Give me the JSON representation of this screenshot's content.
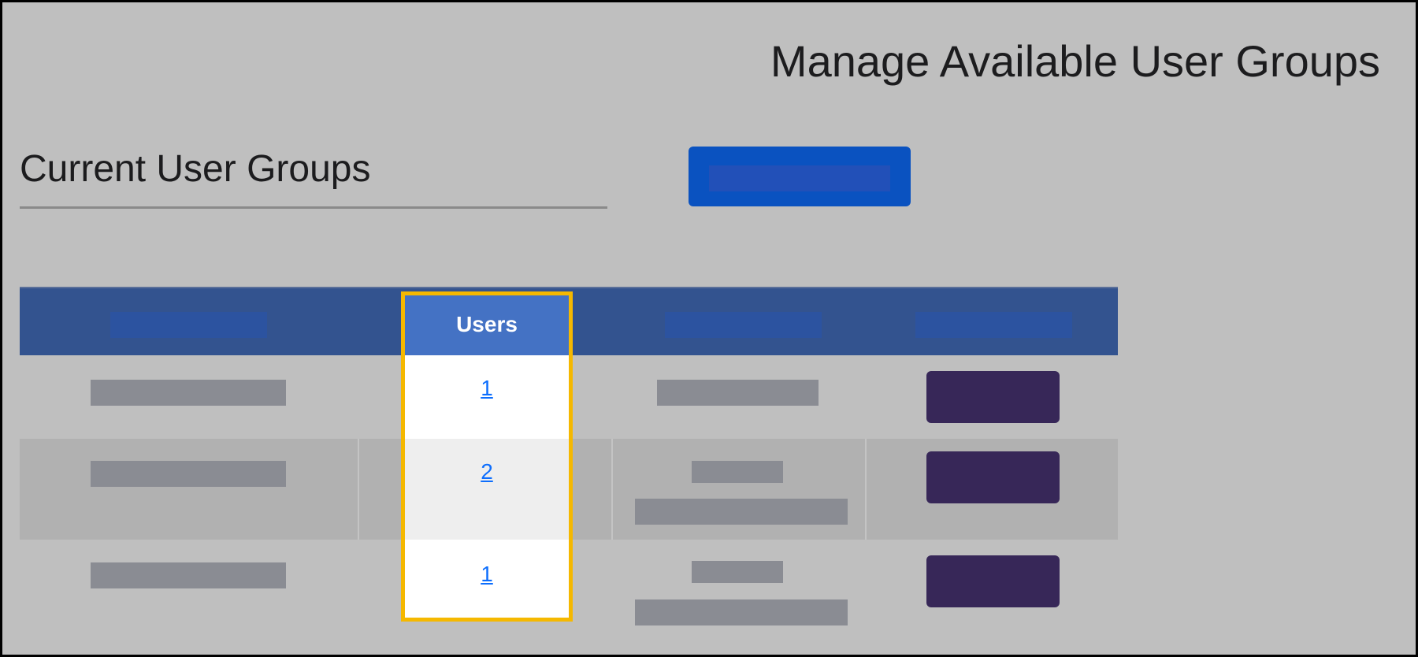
{
  "header": {
    "title": "Manage Available User Groups"
  },
  "section": {
    "title": "Current User Groups"
  },
  "table": {
    "columns": [
      {
        "label": ""
      },
      {
        "label": "Users"
      },
      {
        "label": ""
      },
      {
        "label": ""
      }
    ],
    "rows": [
      {
        "users": "1"
      },
      {
        "users": "2"
      },
      {
        "users": "1"
      }
    ]
  },
  "colors": {
    "header_bg": "#33538f",
    "highlight_header": "#4472c4",
    "highlight_border": "#f5b800",
    "primary_button": "#0a52c0",
    "row_button": "#372758",
    "link": "#0d6efd"
  }
}
